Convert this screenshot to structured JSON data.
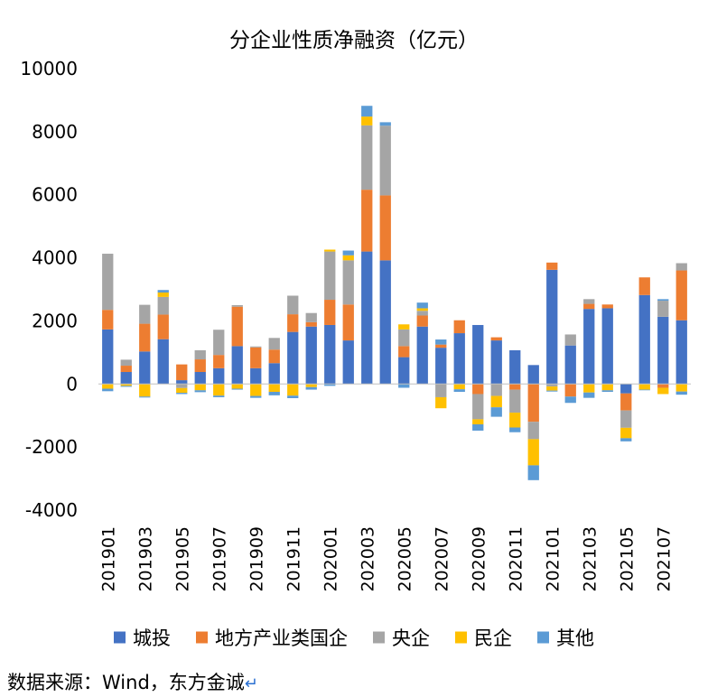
{
  "chart_data": {
    "type": "bar",
    "stacked": true,
    "title": "分企业性质净融资（亿元）",
    "xlabel": "",
    "ylabel": "",
    "ylim": [
      -4000,
      10000
    ],
    "yticks": [
      10000,
      8000,
      6000,
      4000,
      2000,
      0,
      -2000,
      -4000
    ],
    "ytick_labels": [
      "10000",
      "8000",
      "6000",
      "4000",
      "2000",
      "0",
      "-2000",
      "-4000"
    ],
    "categories": [
      "201901",
      "201902",
      "201903",
      "201904",
      "201905",
      "201906",
      "201907",
      "201908",
      "201909",
      "201910",
      "201911",
      "201912",
      "202001",
      "202002",
      "202003",
      "202004",
      "202005",
      "202006",
      "202007",
      "202008",
      "202009",
      "202010",
      "202011",
      "202012",
      "202101",
      "202102",
      "202103",
      "202104",
      "202105",
      "202106",
      "202107",
      "202108"
    ],
    "xtick_labels": [
      "201901",
      "201903",
      "201905",
      "201907",
      "201909",
      "201911",
      "202001",
      "202003",
      "202005",
      "202007",
      "202009",
      "202011",
      "202101",
      "202103",
      "202105",
      "202107"
    ],
    "grid": false,
    "legend_position": "bottom",
    "series": [
      {
        "name": "城投",
        "color": "#4472C4",
        "values": [
          1730,
          380,
          1030,
          1420,
          120,
          380,
          500,
          1200,
          500,
          660,
          1650,
          1820,
          1870,
          1380,
          4200,
          3920,
          850,
          1820,
          1150,
          1610,
          1870,
          1380,
          1070,
          600,
          3620,
          1220,
          2380,
          2400,
          -300,
          2820,
          2130,
          2020
        ]
      },
      {
        "name": "地方产业类国企",
        "color": "#ED7D31",
        "values": [
          620,
          200,
          880,
          780,
          500,
          400,
          420,
          1250,
          660,
          430,
          560,
          140,
          800,
          1140,
          1960,
          2060,
          350,
          350,
          100,
          410,
          -320,
          100,
          -180,
          -1200,
          230,
          -400,
          160,
          120,
          -540,
          560,
          -120,
          1580
        ]
      },
      {
        "name": "央企",
        "color": "#A5A5A5",
        "values": [
          1780,
          190,
          600,
          560,
          -130,
          290,
          800,
          50,
          30,
          370,
          590,
          290,
          1530,
          1400,
          2040,
          2210,
          530,
          150,
          -420,
          0,
          -800,
          -380,
          -730,
          -550,
          -80,
          350,
          150,
          0,
          -550,
          0,
          510,
          230
        ]
      },
      {
        "name": "民企",
        "color": "#FFC000",
        "values": [
          -150,
          -60,
          -400,
          140,
          -150,
          -200,
          -370,
          -150,
          -380,
          -250,
          -370,
          -100,
          60,
          160,
          280,
          0,
          160,
          80,
          -350,
          -170,
          -160,
          -360,
          -470,
          -830,
          -130,
          0,
          -270,
          -200,
          -330,
          -180,
          -200,
          -240
        ]
      },
      {
        "name": "其他",
        "color": "#5B9BD5",
        "values": [
          -80,
          -30,
          -30,
          80,
          -40,
          -60,
          -50,
          -30,
          -60,
          -110,
          -80,
          -80,
          -60,
          150,
          340,
          110,
          -120,
          180,
          160,
          -80,
          -200,
          -300,
          -150,
          -470,
          -30,
          -200,
          -170,
          -50,
          -100,
          -20,
          50,
          -100
        ]
      }
    ]
  },
  "source": {
    "text": "数据来源：Wind，东方金诚",
    "return_glyph": "↵"
  }
}
